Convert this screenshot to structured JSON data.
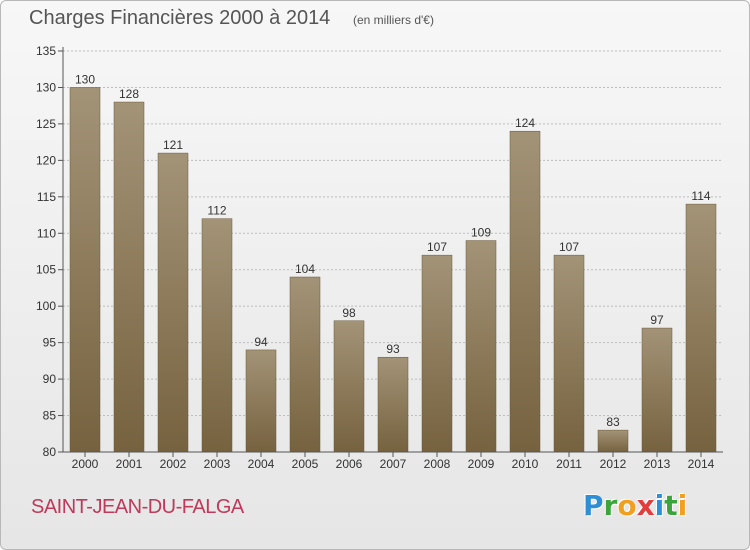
{
  "header": {
    "title": "Charges Financières 2000 à 2014",
    "subtitle": "(en milliers d'€)"
  },
  "footer": {
    "place": "SAINT-JEAN-DU-FALGA",
    "logo": [
      "P",
      "r",
      "o",
      "x",
      "i",
      "t",
      "i"
    ],
    "logo_colors": [
      "#2f8fd6",
      "#3aa53a",
      "#f0a020",
      "#e23d3d",
      "#2f8fd6",
      "#3aa53a",
      "#f0a020"
    ]
  },
  "colors": {
    "bar_top": "#a39377",
    "bar_bottom": "#76623f",
    "grid": "#bdbdbd",
    "axis": "#555555"
  },
  "chart_data": {
    "type": "bar",
    "categories": [
      "2000",
      "2001",
      "2002",
      "2003",
      "2004",
      "2005",
      "2006",
      "2007",
      "2008",
      "2009",
      "2010",
      "2011",
      "2012",
      "2013",
      "2014"
    ],
    "values": [
      130,
      128,
      121,
      112,
      94,
      104,
      98,
      93,
      107,
      109,
      124,
      107,
      83,
      97,
      114
    ],
    "data_labels": [
      "130",
      "128",
      "121",
      "112",
      "94",
      "104",
      "98",
      "93",
      "107",
      "109",
      "124",
      "107",
      "83",
      "97",
      "114"
    ],
    "ylim": [
      80,
      135
    ],
    "yticks": [
      80,
      85,
      90,
      95,
      100,
      105,
      110,
      115,
      120,
      125,
      130,
      135
    ],
    "ytick_labels": [
      "80",
      "85",
      "90",
      "95",
      "100",
      "105",
      "110",
      "115",
      "120",
      "125",
      "130",
      "135"
    ],
    "grid": true,
    "xlabel": "",
    "ylabel": ""
  }
}
